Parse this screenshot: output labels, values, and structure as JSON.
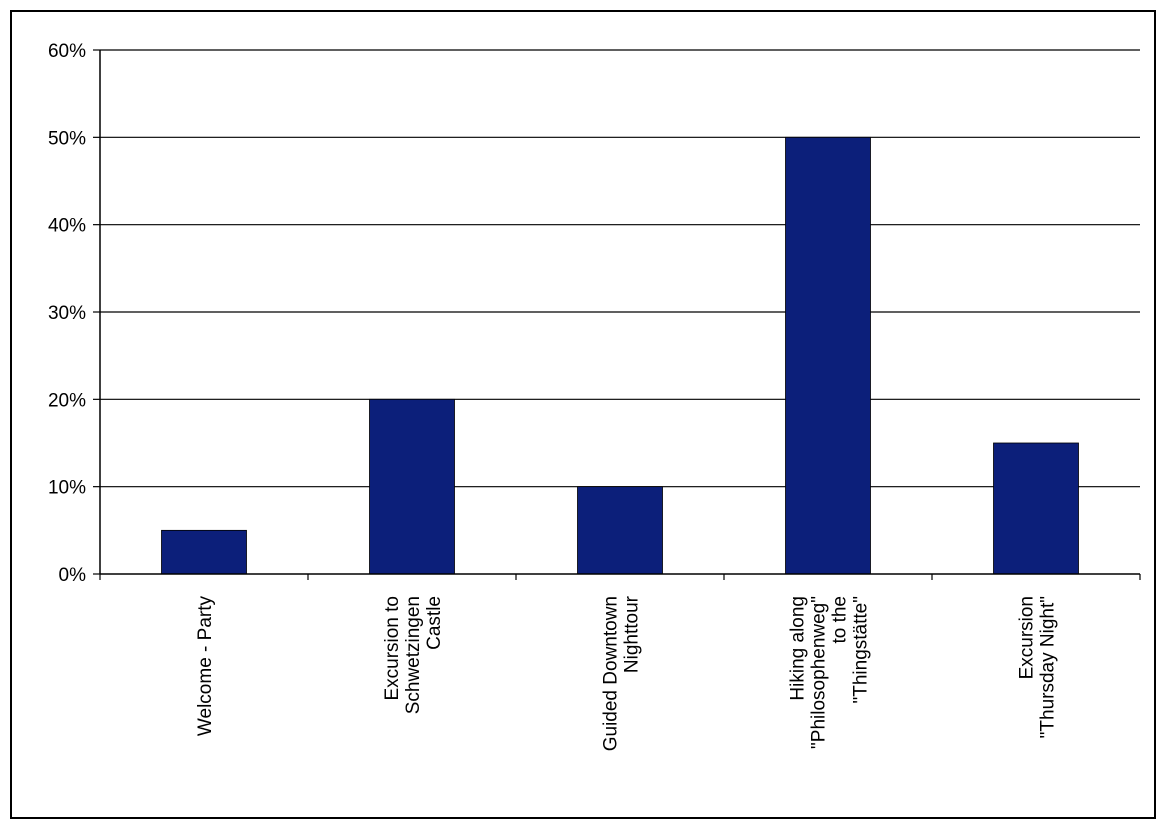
{
  "chart_data": {
    "type": "bar",
    "categories": [
      [
        "Welcome - Party"
      ],
      [
        "Excursion to",
        "Schwetzingen",
        "Castle"
      ],
      [
        "Guided Downtown",
        "Nighttour"
      ],
      [
        "Hiking along",
        "\"Philosophenweg\"",
        "to the",
        "\"Thingstätte\""
      ],
      [
        "Excursion",
        "\"Thursday Night\""
      ]
    ],
    "values": [
      5,
      20,
      10,
      50,
      15
    ],
    "ylim": [
      0,
      60
    ],
    "yticks": [
      0,
      10,
      20,
      30,
      40,
      50,
      60
    ],
    "ytick_labels": [
      "0%",
      "10%",
      "20%",
      "30%",
      "40%",
      "50%",
      "60%"
    ],
    "grid": true,
    "bar_color": "#0c1f7a",
    "title": "",
    "xlabel": "",
    "ylabel": ""
  }
}
